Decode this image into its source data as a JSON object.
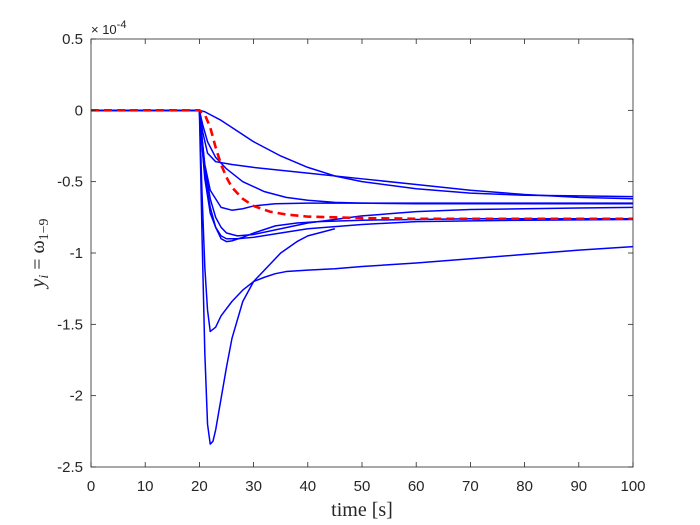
{
  "chart_data": {
    "type": "line",
    "title": "",
    "xlabel_text": "time",
    "xlabel_unit": "[s]",
    "ylabel_base": "y",
    "ylabel_sub": "i",
    "ylabel_eq": " = ω",
    "ylabel_sub2": "1−9",
    "y_multiplier_base": "× 10",
    "y_multiplier_exp": "-4",
    "xlim": [
      0,
      100
    ],
    "ylim": [
      -2.5,
      0.5
    ],
    "x_ticks": [
      0,
      10,
      20,
      30,
      40,
      50,
      60,
      70,
      80,
      90,
      100
    ],
    "y_ticks": [
      0.5,
      0,
      -0.5,
      -1,
      -1.5,
      -2,
      -2.5
    ],
    "y_tick_labels": [
      "0.5",
      "0",
      "-0.5",
      "-1",
      "-1.5",
      "-2",
      "-2.5"
    ],
    "grid": false,
    "legend": "none",
    "series_color_blue": "#0000ff",
    "series_color_red": "#ff0000",
    "series": [
      {
        "color": "blue",
        "style": "solid",
        "x": [
          0,
          20,
          21,
          22,
          24,
          26,
          30,
          35,
          40,
          45,
          50,
          60,
          70,
          80,
          90,
          100
        ],
        "y": [
          0,
          0,
          -0.01,
          -0.03,
          -0.07,
          -0.12,
          -0.22,
          -0.32,
          -0.4,
          -0.46,
          -0.5,
          -0.55,
          -0.58,
          -0.595,
          -0.6,
          -0.605
        ]
      },
      {
        "color": "blue",
        "style": "solid",
        "x": [
          0,
          20,
          20.6,
          21.5,
          23,
          26,
          30,
          40,
          50,
          60,
          70,
          80,
          90,
          100
        ],
        "y": [
          0,
          0,
          -0.15,
          -0.3,
          -0.36,
          -0.38,
          -0.4,
          -0.44,
          -0.48,
          -0.52,
          -0.56,
          -0.59,
          -0.61,
          -0.62
        ]
      },
      {
        "color": "blue",
        "style": "solid",
        "x": [
          0,
          20,
          20.6,
          21.5,
          23,
          25,
          28,
          32,
          36,
          40,
          45,
          50,
          60,
          70,
          80,
          90,
          100
        ],
        "y": [
          0,
          0,
          -0.1,
          -0.22,
          -0.33,
          -0.41,
          -0.5,
          -0.57,
          -0.61,
          -0.63,
          -0.645,
          -0.65,
          -0.655,
          -0.655,
          -0.655,
          -0.655,
          -0.655
        ]
      },
      {
        "color": "blue",
        "style": "solid",
        "x": [
          0,
          20,
          20.5,
          21,
          22,
          24,
          26,
          28,
          30,
          34,
          40,
          50,
          60,
          80,
          100
        ],
        "y": [
          0,
          0,
          -0.2,
          -0.38,
          -0.56,
          -0.68,
          -0.7,
          -0.69,
          -0.67,
          -0.655,
          -0.65,
          -0.65,
          -0.65,
          -0.65,
          -0.65
        ]
      },
      {
        "color": "blue",
        "style": "solid",
        "x": [
          0,
          20,
          20.5,
          21,
          22,
          23,
          24,
          25,
          27,
          30,
          35,
          40,
          50,
          60,
          70,
          80,
          90,
          100
        ],
        "y": [
          0,
          0,
          -0.2,
          -0.4,
          -0.62,
          -0.75,
          -0.82,
          -0.86,
          -0.88,
          -0.87,
          -0.83,
          -0.79,
          -0.74,
          -0.71,
          -0.695,
          -0.69,
          -0.685,
          -0.68
        ]
      },
      {
        "color": "blue",
        "style": "solid",
        "x": [
          0,
          20,
          20.5,
          21,
          22,
          23,
          24,
          25,
          27,
          30,
          35,
          40,
          50,
          60,
          80,
          100
        ],
        "y": [
          0,
          0,
          -0.25,
          -0.48,
          -0.72,
          -0.82,
          -0.88,
          -0.9,
          -0.9,
          -0.89,
          -0.86,
          -0.83,
          -0.8,
          -0.78,
          -0.77,
          -0.765
        ]
      },
      {
        "color": "blue",
        "style": "solid",
        "x": [
          0,
          20,
          20.5,
          21,
          22,
          23,
          24,
          25,
          26,
          28,
          30,
          34,
          38,
          42,
          50,
          60,
          70,
          80,
          90,
          100
        ],
        "y": [
          0,
          0,
          -0.25,
          -0.45,
          -0.68,
          -0.82,
          -0.9,
          -0.92,
          -0.915,
          -0.89,
          -0.86,
          -0.81,
          -0.79,
          -0.78,
          -0.77,
          -0.765,
          -0.76,
          -0.76,
          -0.76,
          -0.76
        ]
      },
      {
        "color": "blue",
        "style": "solid",
        "x": [
          0,
          20,
          20.5,
          21,
          21.5,
          22,
          23,
          24,
          26,
          28,
          30,
          32,
          34,
          36,
          40,
          45,
          50,
          60,
          70,
          80,
          90,
          100
        ],
        "y": [
          0,
          0,
          -0.6,
          -1.1,
          -1.4,
          -1.55,
          -1.52,
          -1.44,
          -1.34,
          -1.26,
          -1.2,
          -1.17,
          -1.145,
          -1.13,
          -1.12,
          -1.11,
          -1.095,
          -1.07,
          -1.04,
          -1.01,
          -0.98,
          -0.955
        ]
      },
      {
        "color": "blue",
        "style": "solid",
        "x": [
          0,
          20,
          20.5,
          21,
          21.5,
          22,
          22.5,
          23,
          24,
          25,
          26,
          28,
          30,
          32,
          35,
          38,
          40,
          45
        ],
        "y": [
          0,
          0,
          -0.9,
          -1.7,
          -2.2,
          -2.34,
          -2.32,
          -2.24,
          -2.02,
          -1.8,
          -1.6,
          -1.34,
          -1.2,
          -1.12,
          -1.0,
          -0.92,
          -0.88,
          -0.83
        ]
      },
      {
        "color": "red",
        "style": "dashed",
        "x": [
          0,
          20,
          21,
          22,
          23,
          24,
          25,
          26,
          28,
          30,
          33,
          36,
          40,
          45,
          50,
          60,
          70,
          80,
          90,
          100
        ],
        "y": [
          0,
          0,
          -0.03,
          -0.12,
          -0.26,
          -0.38,
          -0.47,
          -0.54,
          -0.62,
          -0.67,
          -0.71,
          -0.73,
          -0.745,
          -0.75,
          -0.755,
          -0.76,
          -0.76,
          -0.76,
          -0.76,
          -0.76
        ]
      }
    ]
  }
}
